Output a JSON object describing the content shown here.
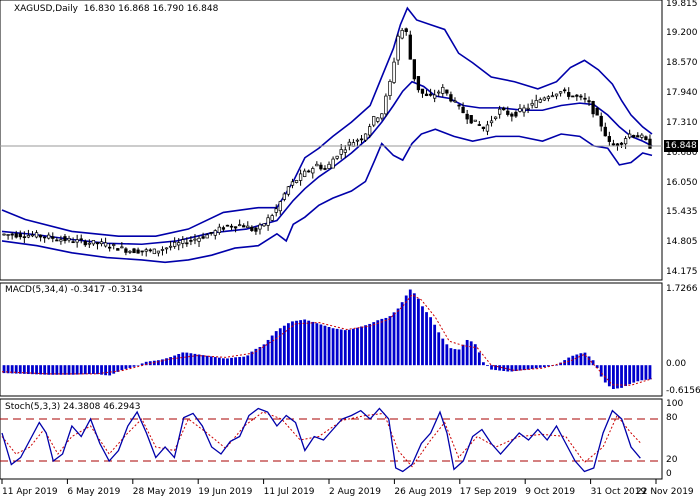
{
  "header": {
    "main_label": "XAGUSD,Daily",
    "ohlc": "16.830 16.868 16.790 16.848",
    "macd_label": "MACD(5,34,4) -0.3417 -0.3134",
    "stoch_label": "Stoch(5,3,3) 24.3808 46.2943"
  },
  "colors": {
    "candle": "#000000",
    "bollinger": "#0000aa",
    "macd_hist": "#0000cc",
    "macd_signal": "#cc0000",
    "stoch_main": "#0000aa",
    "stoch_signal": "#cc0000",
    "level_line": "#aa0000",
    "current_price_line": "#999999"
  },
  "chart_data": [
    {
      "type": "candlestick",
      "title": "XAGUSD,Daily",
      "price_axis_labels": [
        "19.815",
        "19.200",
        "18.570",
        "17.940",
        "17.310",
        "16.848",
        "16.680",
        "16.050",
        "15.435",
        "14.805",
        "14.175"
      ],
      "current_price": 16.848,
      "ylim": [
        14.175,
        19.815
      ],
      "x_labels": [
        "11 Apr 2019",
        "6 May 2019",
        "28 May 2019",
        "19 Jun 2019",
        "11 Jul 2019",
        "2 Aug 2019",
        "26 Aug 2019",
        "17 Sep 2019",
        "9 Oct 2019",
        "31 Oct 2019",
        "22 Nov 2019"
      ],
      "price_path": [
        [
          0,
          14.99
        ],
        [
          15,
          14.97
        ],
        [
          30,
          14.86
        ],
        [
          45,
          14.78
        ],
        [
          55,
          14.65
        ],
        [
          66,
          14.63
        ],
        [
          80,
          14.84
        ],
        [
          90,
          14.99
        ],
        [
          97,
          15.16
        ],
        [
          104,
          15.19
        ],
        [
          110,
          15.05
        ],
        [
          118,
          15.46
        ],
        [
          124,
          16.0
        ],
        [
          130,
          16.25
        ],
        [
          136,
          16.45
        ],
        [
          140,
          16.35
        ],
        [
          144,
          16.65
        ],
        [
          150,
          16.9
        ],
        [
          156,
          17.05
        ],
        [
          160,
          17.4
        ],
        [
          164,
          17.55
        ],
        [
          168,
          18.3
        ],
        [
          171,
          19.2
        ],
        [
          174,
          19.35
        ],
        [
          177,
          18.4
        ],
        [
          180,
          18.0
        ],
        [
          184,
          17.85
        ],
        [
          190,
          18.05
        ],
        [
          196,
          17.7
        ],
        [
          202,
          17.4
        ],
        [
          208,
          17.2
        ],
        [
          214,
          17.6
        ],
        [
          220,
          17.5
        ],
        [
          228,
          17.7
        ],
        [
          234,
          17.9
        ],
        [
          240,
          18.0
        ],
        [
          246,
          17.9
        ],
        [
          252,
          17.8
        ],
        [
          258,
          17.3
        ],
        [
          262,
          16.85
        ],
        [
          266,
          16.9
        ],
        [
          270,
          17.1
        ],
        [
          275,
          17.05
        ],
        [
          279,
          16.848
        ]
      ],
      "bollinger_upper": [
        [
          0,
          15.5
        ],
        [
          10,
          15.3
        ],
        [
          30,
          15.05
        ],
        [
          50,
          14.95
        ],
        [
          66,
          14.95
        ],
        [
          80,
          15.1
        ],
        [
          95,
          15.45
        ],
        [
          110,
          15.55
        ],
        [
          118,
          15.55
        ],
        [
          125,
          16.1
        ],
        [
          130,
          16.6
        ],
        [
          136,
          16.8
        ],
        [
          142,
          17.05
        ],
        [
          150,
          17.35
        ],
        [
          158,
          17.7
        ],
        [
          163,
          18.3
        ],
        [
          168,
          18.9
        ],
        [
          171,
          19.4
        ],
        [
          174,
          19.75
        ],
        [
          178,
          19.5
        ],
        [
          184,
          19.4
        ],
        [
          190,
          19.3
        ],
        [
          196,
          18.8
        ],
        [
          202,
          18.6
        ],
        [
          210,
          18.3
        ],
        [
          220,
          18.2
        ],
        [
          230,
          18.05
        ],
        [
          238,
          18.2
        ],
        [
          244,
          18.5
        ],
        [
          250,
          18.65
        ],
        [
          256,
          18.45
        ],
        [
          262,
          18.15
        ],
        [
          266,
          17.8
        ],
        [
          270,
          17.5
        ],
        [
          275,
          17.25
        ],
        [
          279,
          17.1
        ]
      ],
      "bollinger_middle": [
        [
          0,
          15.05
        ],
        [
          15,
          14.98
        ],
        [
          30,
          14.88
        ],
        [
          45,
          14.8
        ],
        [
          60,
          14.78
        ],
        [
          75,
          14.85
        ],
        [
          90,
          15.02
        ],
        [
          105,
          15.1
        ],
        [
          118,
          15.28
        ],
        [
          125,
          15.7
        ],
        [
          130,
          15.95
        ],
        [
          136,
          16.2
        ],
        [
          142,
          16.4
        ],
        [
          150,
          16.7
        ],
        [
          158,
          17.05
        ],
        [
          163,
          17.35
        ],
        [
          168,
          17.7
        ],
        [
          172,
          18.0
        ],
        [
          176,
          18.2
        ],
        [
          181,
          18.1
        ],
        [
          186,
          17.9
        ],
        [
          192,
          17.85
        ],
        [
          198,
          17.7
        ],
        [
          205,
          17.65
        ],
        [
          214,
          17.65
        ],
        [
          224,
          17.6
        ],
        [
          232,
          17.6
        ],
        [
          240,
          17.7
        ],
        [
          248,
          17.75
        ],
        [
          254,
          17.72
        ],
        [
          260,
          17.5
        ],
        [
          265,
          17.25
        ],
        [
          270,
          17.05
        ],
        [
          275,
          16.95
        ],
        [
          279,
          16.85
        ]
      ],
      "bollinger_lower": [
        [
          0,
          14.85
        ],
        [
          15,
          14.75
        ],
        [
          30,
          14.6
        ],
        [
          45,
          14.5
        ],
        [
          60,
          14.45
        ],
        [
          70,
          14.4
        ],
        [
          80,
          14.45
        ],
        [
          90,
          14.55
        ],
        [
          100,
          14.7
        ],
        [
          110,
          14.75
        ],
        [
          118,
          15.0
        ],
        [
          122,
          14.85
        ],
        [
          125,
          15.2
        ],
        [
          130,
          15.35
        ],
        [
          136,
          15.6
        ],
        [
          142,
          15.75
        ],
        [
          150,
          15.9
        ],
        [
          156,
          16.1
        ],
        [
          160,
          16.55
        ],
        [
          163,
          16.9
        ],
        [
          168,
          16.65
        ],
        [
          172,
          16.55
        ],
        [
          176,
          16.9
        ],
        [
          180,
          17.1
        ],
        [
          186,
          17.2
        ],
        [
          194,
          17.05
        ],
        [
          202,
          16.95
        ],
        [
          212,
          17.05
        ],
        [
          222,
          17.05
        ],
        [
          232,
          16.95
        ],
        [
          240,
          17.1
        ],
        [
          248,
          17.05
        ],
        [
          254,
          16.85
        ],
        [
          260,
          16.8
        ],
        [
          265,
          16.45
        ],
        [
          270,
          16.5
        ],
        [
          275,
          16.7
        ],
        [
          279,
          16.65
        ]
      ],
      "n_bars": 160
    },
    {
      "type": "bar",
      "title": "MACD(5,34,4) -0.3417 -0.3134",
      "axis_labels": [
        "1.7266",
        "0.00",
        "-0.6156"
      ],
      "ylim": [
        -0.6156,
        1.7266
      ],
      "histogram_path": [
        [
          0,
          -0.18
        ],
        [
          10,
          -0.2
        ],
        [
          20,
          -0.22
        ],
        [
          30,
          -0.22
        ],
        [
          40,
          -0.2
        ],
        [
          46,
          -0.24
        ],
        [
          52,
          -0.1
        ],
        [
          56,
          -0.05
        ],
        [
          62,
          0.08
        ],
        [
          68,
          0.12
        ],
        [
          72,
          0.18
        ],
        [
          78,
          0.3
        ],
        [
          84,
          0.25
        ],
        [
          90,
          0.2
        ],
        [
          96,
          0.15
        ],
        [
          100,
          0.18
        ],
        [
          105,
          0.2
        ],
        [
          108,
          0.35
        ],
        [
          112,
          0.45
        ],
        [
          118,
          0.8
        ],
        [
          124,
          1.0
        ],
        [
          130,
          1.05
        ],
        [
          136,
          0.95
        ],
        [
          142,
          0.85
        ],
        [
          148,
          0.8
        ],
        [
          152,
          0.85
        ],
        [
          158,
          0.95
        ],
        [
          162,
          1.05
        ],
        [
          166,
          1.1
        ],
        [
          170,
          1.3
        ],
        [
          173,
          1.55
        ],
        [
          175,
          1.75
        ],
        [
          178,
          1.6
        ],
        [
          181,
          1.3
        ],
        [
          184,
          1.1
        ],
        [
          188,
          0.7
        ],
        [
          192,
          0.4
        ],
        [
          196,
          0.35
        ],
        [
          200,
          0.6
        ],
        [
          204,
          0.45
        ],
        [
          206,
          0.1
        ],
        [
          210,
          -0.1
        ],
        [
          218,
          -0.15
        ],
        [
          226,
          -0.1
        ],
        [
          232,
          -0.05
        ],
        [
          238,
          0.0
        ],
        [
          244,
          0.2
        ],
        [
          250,
          0.3
        ],
        [
          254,
          0.1
        ],
        [
          258,
          -0.35
        ],
        [
          262,
          -0.55
        ],
        [
          266,
          -0.52
        ],
        [
          270,
          -0.42
        ],
        [
          274,
          -0.35
        ],
        [
          279,
          -0.32
        ]
      ],
      "signal_path": [
        [
          0,
          -0.15
        ],
        [
          20,
          -0.2
        ],
        [
          40,
          -0.2
        ],
        [
          52,
          -0.12
        ],
        [
          62,
          0.02
        ],
        [
          72,
          0.14
        ],
        [
          84,
          0.22
        ],
        [
          96,
          0.18
        ],
        [
          108,
          0.28
        ],
        [
          118,
          0.62
        ],
        [
          126,
          0.95
        ],
        [
          136,
          0.98
        ],
        [
          148,
          0.82
        ],
        [
          158,
          0.9
        ],
        [
          166,
          1.05
        ],
        [
          172,
          1.35
        ],
        [
          176,
          1.62
        ],
        [
          180,
          1.5
        ],
        [
          186,
          1.1
        ],
        [
          192,
          0.55
        ],
        [
          198,
          0.45
        ],
        [
          204,
          0.4
        ],
        [
          210,
          0.0
        ],
        [
          220,
          -0.12
        ],
        [
          232,
          -0.07
        ],
        [
          244,
          0.1
        ],
        [
          250,
          0.25
        ],
        [
          256,
          -0.1
        ],
        [
          262,
          -0.45
        ],
        [
          270,
          -0.46
        ],
        [
          279,
          -0.31
        ]
      ]
    },
    {
      "type": "line",
      "title": "Stoch(5,3,3) 24.3808 46.2943",
      "axis_labels": [
        "100",
        "80",
        "20",
        "0"
      ],
      "ylim": [
        0,
        100
      ],
      "levels": [
        80,
        20
      ],
      "main_path": [
        [
          0,
          60
        ],
        [
          4,
          15
        ],
        [
          8,
          25
        ],
        [
          12,
          50
        ],
        [
          16,
          75
        ],
        [
          19,
          60
        ],
        [
          22,
          20
        ],
        [
          26,
          30
        ],
        [
          30,
          70
        ],
        [
          34,
          55
        ],
        [
          38,
          80
        ],
        [
          42,
          45
        ],
        [
          46,
          20
        ],
        [
          50,
          35
        ],
        [
          54,
          70
        ],
        [
          58,
          90
        ],
        [
          62,
          60
        ],
        [
          66,
          25
        ],
        [
          70,
          40
        ],
        [
          74,
          25
        ],
        [
          78,
          82
        ],
        [
          82,
          88
        ],
        [
          86,
          70
        ],
        [
          90,
          40
        ],
        [
          94,
          30
        ],
        [
          98,
          48
        ],
        [
          102,
          55
        ],
        [
          106,
          85
        ],
        [
          110,
          95
        ],
        [
          114,
          90
        ],
        [
          118,
          70
        ],
        [
          122,
          85
        ],
        [
          126,
          75
        ],
        [
          130,
          35
        ],
        [
          134,
          55
        ],
        [
          138,
          50
        ],
        [
          142,
          65
        ],
        [
          146,
          80
        ],
        [
          150,
          85
        ],
        [
          154,
          92
        ],
        [
          158,
          80
        ],
        [
          162,
          95
        ],
        [
          166,
          80
        ],
        [
          169,
          10
        ],
        [
          172,
          5
        ],
        [
          176,
          15
        ],
        [
          180,
          45
        ],
        [
          184,
          60
        ],
        [
          188,
          90
        ],
        [
          191,
          60
        ],
        [
          194,
          8
        ],
        [
          198,
          20
        ],
        [
          202,
          55
        ],
        [
          206,
          65
        ],
        [
          210,
          45
        ],
        [
          214,
          30
        ],
        [
          218,
          45
        ],
        [
          222,
          60
        ],
        [
          226,
          50
        ],
        [
          230,
          65
        ],
        [
          234,
          50
        ],
        [
          238,
          70
        ],
        [
          242,
          45
        ],
        [
          246,
          20
        ],
        [
          250,
          5
        ],
        [
          254,
          10
        ],
        [
          258,
          60
        ],
        [
          262,
          92
        ],
        [
          266,
          80
        ],
        [
          270,
          40
        ],
        [
          274,
          24
        ]
      ],
      "signal_path": [
        [
          0,
          55
        ],
        [
          6,
          30
        ],
        [
          12,
          40
        ],
        [
          18,
          65
        ],
        [
          24,
          30
        ],
        [
          30,
          55
        ],
        [
          38,
          70
        ],
        [
          46,
          30
        ],
        [
          54,
          60
        ],
        [
          60,
          80
        ],
        [
          66,
          40
        ],
        [
          74,
          35
        ],
        [
          80,
          80
        ],
        [
          88,
          60
        ],
        [
          96,
          38
        ],
        [
          104,
          70
        ],
        [
          112,
          90
        ],
        [
          120,
          80
        ],
        [
          128,
          50
        ],
        [
          136,
          55
        ],
        [
          146,
          78
        ],
        [
          156,
          85
        ],
        [
          164,
          88
        ],
        [
          170,
          35
        ],
        [
          176,
          12
        ],
        [
          184,
          50
        ],
        [
          190,
          75
        ],
        [
          196,
          25
        ],
        [
          204,
          55
        ],
        [
          212,
          40
        ],
        [
          222,
          55
        ],
        [
          232,
          58
        ],
        [
          242,
          55
        ],
        [
          250,
          18
        ],
        [
          258,
          40
        ],
        [
          264,
          85
        ],
        [
          270,
          60
        ],
        [
          274,
          46
        ]
      ]
    }
  ]
}
